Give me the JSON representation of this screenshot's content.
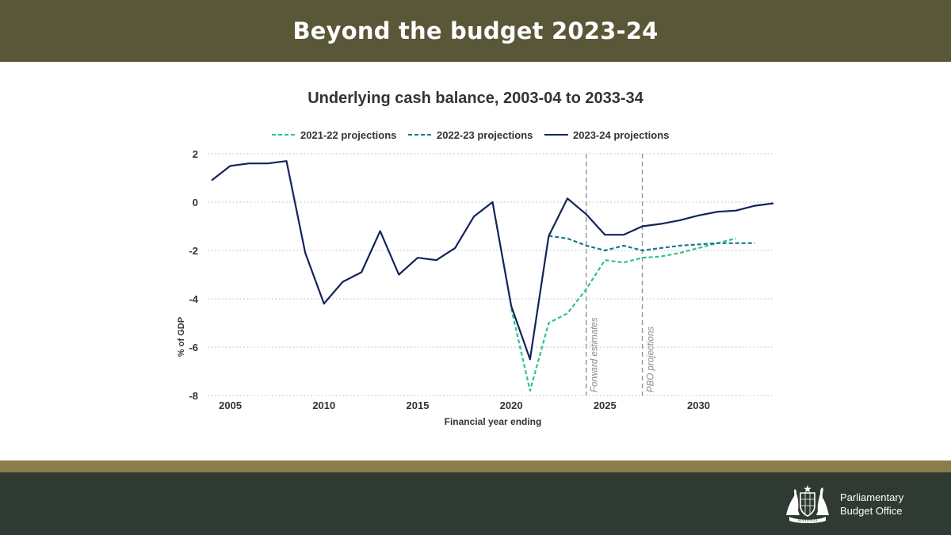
{
  "header": {
    "title": "Beyond the budget 2023-24"
  },
  "footer": {
    "org_line1": "Parliamentary",
    "org_line2": "Budget Office",
    "crest_text": "AUSTRALIA"
  },
  "colors": {
    "header_bg": "#5a5738",
    "accent_strip": "#8b7d4b",
    "footer_bg": "#2f3a33",
    "series_2021": "#2fc48c",
    "series_2022": "#13798a",
    "series_2023": "#14235a"
  },
  "chart_data": {
    "type": "line",
    "title": "Underlying cash balance, 2003-04 to 2033-34",
    "xlabel": "Financial year ending",
    "ylabel": "% of GDP",
    "xlim": [
      2004,
      2034
    ],
    "ylim": [
      -8,
      2
    ],
    "x_ticks": [
      2005,
      2010,
      2015,
      2020,
      2025,
      2030
    ],
    "y_ticks": [
      2,
      0,
      -2,
      -4,
      -6,
      -8
    ],
    "grid": "horizontal dotted",
    "legend_position": "top-center",
    "series": [
      {
        "name": "2021-22 projections",
        "style": "dashed",
        "x": [
          2020,
          2021,
          2022,
          2023,
          2024,
          2025,
          2026,
          2027,
          2028,
          2029,
          2030,
          2031,
          2032
        ],
        "values": [
          -4.4,
          -7.8,
          -5.0,
          -4.6,
          -3.6,
          -2.4,
          -2.5,
          -2.3,
          -2.25,
          -2.1,
          -1.9,
          -1.7,
          -1.5
        ]
      },
      {
        "name": "2022-23 projections",
        "style": "dashed",
        "x": [
          2022,
          2023,
          2024,
          2025,
          2026,
          2027,
          2028,
          2029,
          2030,
          2031,
          2032,
          2033
        ],
        "values": [
          -1.4,
          -1.5,
          -1.8,
          -2.0,
          -1.8,
          -2.0,
          -1.9,
          -1.8,
          -1.75,
          -1.7,
          -1.7,
          -1.7
        ]
      },
      {
        "name": "2023-24 projections",
        "style": "solid",
        "x": [
          2004,
          2005,
          2006,
          2007,
          2008,
          2009,
          2010,
          2011,
          2012,
          2013,
          2014,
          2015,
          2016,
          2017,
          2018,
          2019,
          2020,
          2021,
          2022,
          2023,
          2024,
          2025,
          2026,
          2027,
          2028,
          2029,
          2030,
          2031,
          2032,
          2033,
          2034
        ],
        "values": [
          0.9,
          1.5,
          1.6,
          1.6,
          1.7,
          -2.1,
          -4.2,
          -3.3,
          -2.9,
          -1.2,
          -3.0,
          -2.3,
          -2.4,
          -1.9,
          -0.6,
          0.0,
          -4.3,
          -6.5,
          -1.4,
          0.15,
          -0.5,
          -1.35,
          -1.35,
          -1.0,
          -0.9,
          -0.75,
          -0.55,
          -0.4,
          -0.35,
          -0.15,
          -0.05
        ]
      }
    ],
    "annotations": [
      {
        "x": 2024,
        "label": "Forward estimates",
        "style": "dashed vertical"
      },
      {
        "x": 2027,
        "label": "PBO projections",
        "style": "dashed vertical"
      }
    ]
  }
}
